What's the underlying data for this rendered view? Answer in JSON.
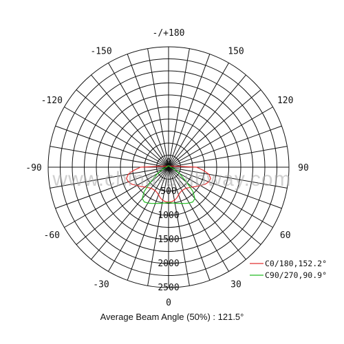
{
  "chart_data": {
    "type": "polar",
    "angle_labels": [
      {
        "angle": 180,
        "label": "-/+180"
      },
      {
        "angle": 150,
        "label": "150"
      },
      {
        "angle": -150,
        "label": "-150"
      },
      {
        "angle": 120,
        "label": "120"
      },
      {
        "angle": -120,
        "label": "-120"
      },
      {
        "angle": 90,
        "label": "90"
      },
      {
        "angle": -90,
        "label": "-90"
      },
      {
        "angle": 60,
        "label": "60"
      },
      {
        "angle": -60,
        "label": "-60"
      },
      {
        "angle": 30,
        "label": "30"
      },
      {
        "angle": -30,
        "label": "-30"
      },
      {
        "angle": 0,
        "label": "0"
      }
    ],
    "radial_ticks": [
      {
        "value": 0,
        "label": "0"
      },
      {
        "value": 500,
        "label": "500"
      },
      {
        "value": 1000,
        "label": "1000"
      },
      {
        "value": 1500,
        "label": "1500"
      },
      {
        "value": 2000,
        "label": "2000"
      },
      {
        "value": 2500,
        "label": "2500"
      }
    ],
    "rlim": [
      0,
      2500
    ],
    "angle_step": 10,
    "series": [
      {
        "name": "C0/180,152.2°",
        "color": "#e03030",
        "points": [
          {
            "angle": -90,
            "r": 580
          },
          {
            "angle": -85,
            "r": 720
          },
          {
            "angle": -80,
            "r": 850
          },
          {
            "angle": -75,
            "r": 905
          },
          {
            "angle": -70,
            "r": 890
          },
          {
            "angle": -65,
            "r": 840
          },
          {
            "angle": -60,
            "r": 760
          },
          {
            "angle": -55,
            "r": 700
          },
          {
            "angle": -50,
            "r": 640
          },
          {
            "angle": -45,
            "r": 600
          },
          {
            "angle": -40,
            "r": 570
          },
          {
            "angle": -35,
            "r": 560
          },
          {
            "angle": -30,
            "r": 560
          },
          {
            "angle": -25,
            "r": 575
          },
          {
            "angle": -20,
            "r": 610
          },
          {
            "angle": -15,
            "r": 660
          },
          {
            "angle": -10,
            "r": 700
          },
          {
            "angle": -5,
            "r": 720
          },
          {
            "angle": 0,
            "r": 725
          },
          {
            "angle": 5,
            "r": 720
          },
          {
            "angle": 10,
            "r": 700
          },
          {
            "angle": 15,
            "r": 660
          },
          {
            "angle": 20,
            "r": 610
          },
          {
            "angle": 25,
            "r": 575
          },
          {
            "angle": 30,
            "r": 560
          },
          {
            "angle": 35,
            "r": 560
          },
          {
            "angle": 40,
            "r": 570
          },
          {
            "angle": 45,
            "r": 600
          },
          {
            "angle": 50,
            "r": 640
          },
          {
            "angle": 55,
            "r": 700
          },
          {
            "angle": 60,
            "r": 760
          },
          {
            "angle": 65,
            "r": 840
          },
          {
            "angle": 70,
            "r": 890
          },
          {
            "angle": 75,
            "r": 905
          },
          {
            "angle": 80,
            "r": 850
          },
          {
            "angle": 85,
            "r": 720
          },
          {
            "angle": 90,
            "r": 580
          },
          {
            "angle": 100,
            "r": 120
          },
          {
            "angle": 120,
            "r": 40
          },
          {
            "angle": 150,
            "r": 30
          },
          {
            "angle": 180,
            "r": 30
          },
          {
            "angle": -150,
            "r": 30
          },
          {
            "angle": -120,
            "r": 40
          },
          {
            "angle": -100,
            "r": 120
          }
        ]
      },
      {
        "name": "C90/270,90.9°",
        "color": "#22bb22",
        "points": [
          {
            "angle": -90,
            "r": 40
          },
          {
            "angle": -75,
            "r": 110
          },
          {
            "angle": -60,
            "r": 260
          },
          {
            "angle": -50,
            "r": 500
          },
          {
            "angle": -45,
            "r": 720
          },
          {
            "angle": -40,
            "r": 850
          },
          {
            "angle": -35,
            "r": 880
          },
          {
            "angle": -30,
            "r": 860
          },
          {
            "angle": -25,
            "r": 830
          },
          {
            "angle": -20,
            "r": 800
          },
          {
            "angle": -15,
            "r": 780
          },
          {
            "angle": -10,
            "r": 760
          },
          {
            "angle": 0,
            "r": 735
          },
          {
            "angle": 10,
            "r": 760
          },
          {
            "angle": 15,
            "r": 780
          },
          {
            "angle": 20,
            "r": 800
          },
          {
            "angle": 25,
            "r": 830
          },
          {
            "angle": 30,
            "r": 860
          },
          {
            "angle": 35,
            "r": 880
          },
          {
            "angle": 40,
            "r": 850
          },
          {
            "angle": 45,
            "r": 720
          },
          {
            "angle": 50,
            "r": 500
          },
          {
            "angle": 60,
            "r": 260
          },
          {
            "angle": 75,
            "r": 110
          },
          {
            "angle": 90,
            "r": 40
          },
          {
            "angle": 120,
            "r": 30
          },
          {
            "angle": 180,
            "r": 30
          },
          {
            "angle": -120,
            "r": 30
          }
        ]
      }
    ],
    "legend_position": "bottom-right",
    "caption": "Average Beam Angle (50%) : 121.5°"
  },
  "watermark": "www.china-bulbway.com",
  "colors": {
    "grid": "#111111",
    "background": "#ffffff"
  }
}
